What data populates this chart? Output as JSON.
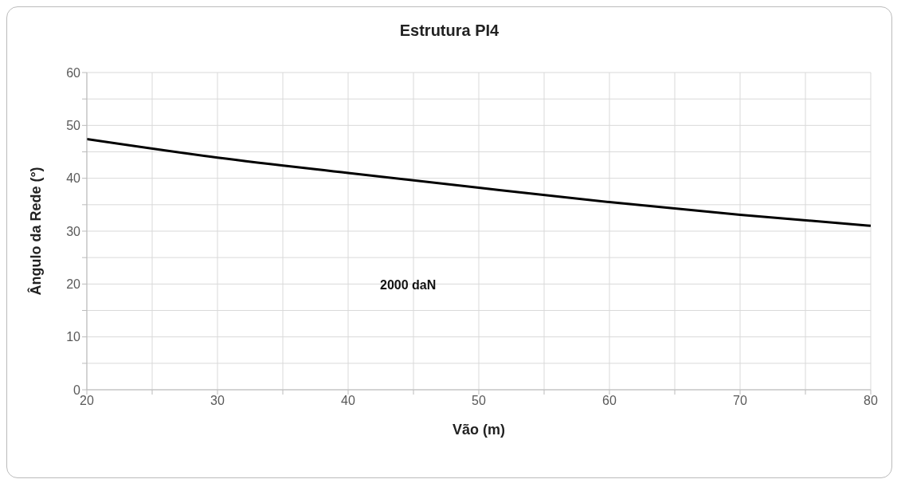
{
  "chart_data": {
    "type": "line",
    "title": "Estrutura PI4",
    "xlabel": "Vão (m)",
    "ylabel": "Ângulo da Rede (°)",
    "x": [
      20,
      30,
      40,
      50,
      60,
      70,
      80
    ],
    "series": [
      {
        "color": "#000000",
        "values": [
          47.4,
          43.9,
          41.0,
          38.2,
          35.5,
          33.1,
          31.0
        ]
      }
    ],
    "xlim": [
      20,
      80
    ],
    "ylim": [
      0,
      60
    ],
    "xticks": [
      20,
      {
        "value": 25,
        "label": null
      },
      30,
      {
        "value": 35,
        "label": null
      },
      40,
      {
        "value": 45,
        "label": null
      },
      50,
      {
        "value": 55,
        "label": null
      },
      60,
      {
        "value": 65,
        "label": null
      },
      70,
      {
        "value": 75,
        "label": null
      },
      80
    ],
    "yticks": [
      0,
      {
        "value": 5,
        "label": null
      },
      10,
      {
        "value": 15,
        "label": null
      },
      20,
      {
        "value": 25,
        "label": null
      },
      30,
      {
        "value": 35,
        "label": null
      },
      40,
      {
        "value": 45,
        "label": null
      },
      50,
      {
        "value": 55,
        "label": null
      },
      60
    ],
    "grid": true,
    "marker": "none",
    "line_style": "solid",
    "legend": false,
    "annotations": [
      "2000 daN"
    ]
  }
}
